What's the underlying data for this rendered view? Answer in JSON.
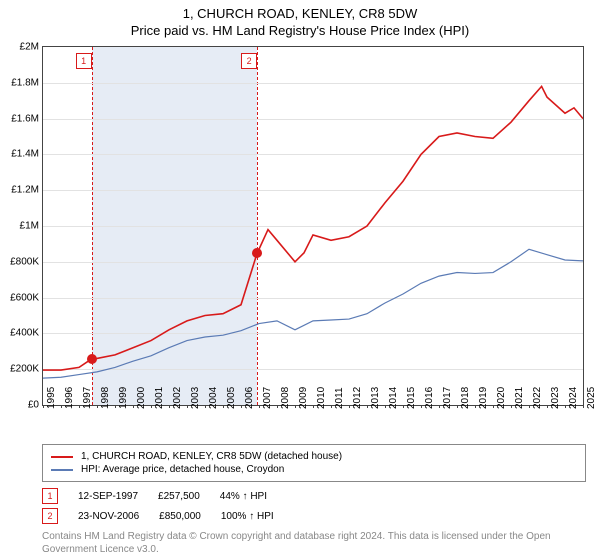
{
  "title": "1, CHURCH ROAD, KENLEY, CR8 5DW",
  "subtitle": "Price paid vs. HM Land Registry's House Price Index (HPI)",
  "chart": {
    "type": "line",
    "background_color": "#ffffff",
    "grid_color": "#e2e2e2",
    "axis_color": "#444444",
    "tick_fontsize": 10,
    "x_years": [
      1995,
      1996,
      1997,
      1998,
      1999,
      2000,
      2001,
      2002,
      2003,
      2004,
      2005,
      2006,
      2007,
      2008,
      2009,
      2010,
      2011,
      2012,
      2013,
      2014,
      2015,
      2016,
      2017,
      2018,
      2019,
      2020,
      2021,
      2022,
      2023,
      2024,
      2025
    ],
    "ylim": [
      0,
      2000000
    ],
    "ytick_step": 200000,
    "ytick_labels": [
      "£0",
      "£200K",
      "£400K",
      "£600K",
      "£800K",
      "£1M",
      "£1.2M",
      "£1.4M",
      "£1.6M",
      "£1.8M",
      "£2M"
    ],
    "shade_start_year": 1997.7,
    "shade_end_year": 2006.9,
    "shade_color": "#e6ecf5",
    "shade_border_color": "#d81a1a",
    "shade_border_dash": true,
    "series": [
      {
        "name": "1, CHURCH ROAD, KENLEY, CR8 5DW (detached house)",
        "color": "#d81a1a",
        "line_width": 1.6,
        "data": [
          [
            1995,
            195000
          ],
          [
            1996,
            195000
          ],
          [
            1997,
            210000
          ],
          [
            1997.7,
            257500
          ],
          [
            1998,
            260000
          ],
          [
            1999,
            280000
          ],
          [
            2000,
            320000
          ],
          [
            2001,
            360000
          ],
          [
            2002,
            420000
          ],
          [
            2003,
            470000
          ],
          [
            2004,
            500000
          ],
          [
            2005,
            510000
          ],
          [
            2006,
            560000
          ],
          [
            2006.9,
            850000
          ],
          [
            2007,
            870000
          ],
          [
            2007.5,
            980000
          ],
          [
            2008,
            920000
          ],
          [
            2009,
            800000
          ],
          [
            2009.5,
            850000
          ],
          [
            2010,
            950000
          ],
          [
            2011,
            920000
          ],
          [
            2012,
            940000
          ],
          [
            2013,
            1000000
          ],
          [
            2014,
            1130000
          ],
          [
            2015,
            1250000
          ],
          [
            2016,
            1400000
          ],
          [
            2017,
            1500000
          ],
          [
            2018,
            1520000
          ],
          [
            2019,
            1500000
          ],
          [
            2020,
            1490000
          ],
          [
            2021,
            1580000
          ],
          [
            2022,
            1700000
          ],
          [
            2022.7,
            1780000
          ],
          [
            2023,
            1720000
          ],
          [
            2024,
            1630000
          ],
          [
            2024.5,
            1660000
          ],
          [
            2025,
            1600000
          ]
        ]
      },
      {
        "name": "HPI: Average price, detached house, Croydon",
        "color": "#5b7bb5",
        "line_width": 1.2,
        "data": [
          [
            1995,
            150000
          ],
          [
            1996,
            155000
          ],
          [
            1997,
            170000
          ],
          [
            1998,
            185000
          ],
          [
            1999,
            210000
          ],
          [
            2000,
            245000
          ],
          [
            2001,
            275000
          ],
          [
            2002,
            320000
          ],
          [
            2003,
            360000
          ],
          [
            2004,
            380000
          ],
          [
            2005,
            390000
          ],
          [
            2006,
            415000
          ],
          [
            2007,
            455000
          ],
          [
            2008,
            470000
          ],
          [
            2009,
            420000
          ],
          [
            2010,
            470000
          ],
          [
            2011,
            475000
          ],
          [
            2012,
            480000
          ],
          [
            2013,
            510000
          ],
          [
            2014,
            570000
          ],
          [
            2015,
            620000
          ],
          [
            2016,
            680000
          ],
          [
            2017,
            720000
          ],
          [
            2018,
            740000
          ],
          [
            2019,
            735000
          ],
          [
            2020,
            740000
          ],
          [
            2021,
            800000
          ],
          [
            2022,
            870000
          ],
          [
            2023,
            840000
          ],
          [
            2024,
            810000
          ],
          [
            2025,
            805000
          ]
        ]
      }
    ],
    "markers": [
      {
        "label": "1",
        "year": 1997.7
      },
      {
        "label": "2",
        "year": 2006.9
      }
    ],
    "sales_points": [
      {
        "year": 1997.7,
        "value": 257500
      },
      {
        "year": 2006.9,
        "value": 850000
      }
    ]
  },
  "legend": {
    "border_color": "#888888",
    "items": [
      {
        "label": "1, CHURCH ROAD, KENLEY, CR8 5DW (detached house)",
        "color": "#d81a1a"
      },
      {
        "label": "HPI: Average price, detached house, Croydon",
        "color": "#5b7bb5"
      }
    ]
  },
  "sales": [
    {
      "marker": "1",
      "date": "12-SEP-1997",
      "price": "£257,500",
      "pct": "44% ↑ HPI"
    },
    {
      "marker": "2",
      "date": "23-NOV-2006",
      "price": "£850,000",
      "pct": "100% ↑ HPI"
    }
  ],
  "attribution": "Contains HM Land Registry data © Crown copyright and database right 2024. This data is licensed under the Open Government Licence v3.0."
}
